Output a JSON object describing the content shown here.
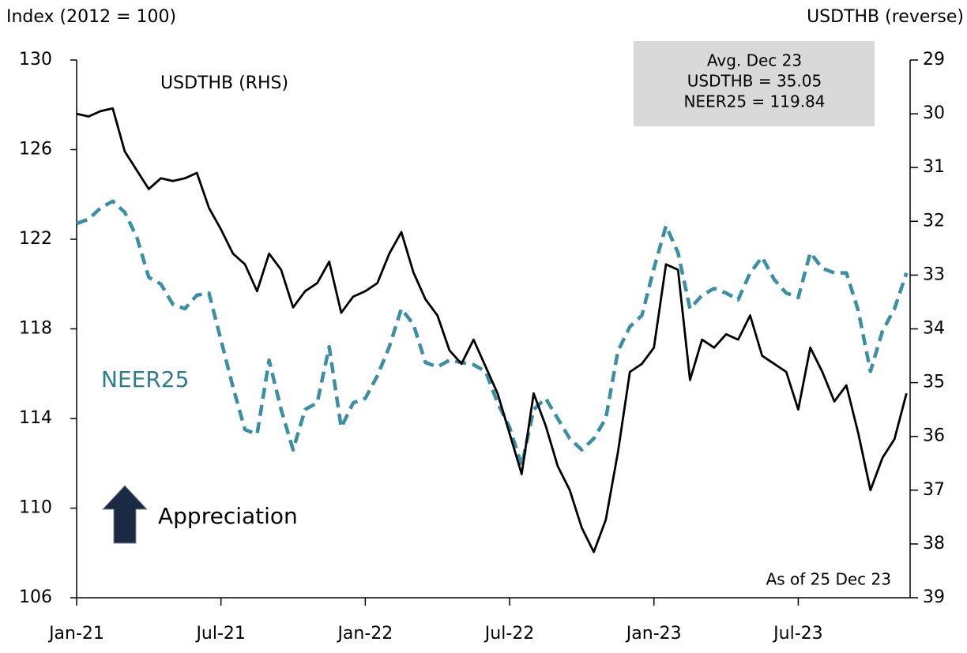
{
  "chart_data": {
    "type": "line",
    "left_axis_title": "Index (2012 = 100)",
    "right_axis_title": "USDTHB (reverse)",
    "x": [
      0,
      0.5,
      1,
      1.5,
      2,
      2.5,
      3,
      3.5,
      4,
      4.5,
      5,
      5.5,
      6,
      6.5,
      7,
      7.5,
      8,
      8.5,
      9,
      9.5,
      10,
      10.5,
      11,
      11.5,
      12,
      12.5,
      13,
      13.5,
      14,
      14.5,
      15,
      15.5,
      16,
      16.5,
      17,
      17.5,
      18,
      18.5,
      19,
      19.5,
      20,
      20.5,
      21,
      21.5,
      22,
      22.5,
      23,
      23.5,
      24,
      24.5,
      25,
      25.5,
      26,
      26.5,
      27,
      27.5,
      28,
      28.5,
      29,
      29.5,
      30,
      30.5,
      31,
      31.5,
      32,
      32.5,
      33,
      33.5,
      34,
      34.5
    ],
    "xlim": [
      0,
      34.65
    ],
    "xticks": [
      {
        "value": 0,
        "label": "Jan-21"
      },
      {
        "value": 6,
        "label": "Jul-21"
      },
      {
        "value": 12,
        "label": "Jan-22"
      },
      {
        "value": 18,
        "label": "Jul-22"
      },
      {
        "value": 24,
        "label": "Jan-23"
      },
      {
        "value": 30,
        "label": "Jul-23"
      }
    ],
    "ylim": [
      106,
      130
    ],
    "yticks": [
      106,
      110,
      114,
      118,
      122,
      126,
      130
    ],
    "y2lim": [
      29,
      39
    ],
    "y2_reversed": true,
    "y2ticks": [
      29,
      30,
      31,
      32,
      33,
      34,
      35,
      36,
      37,
      38,
      39
    ],
    "series": [
      {
        "name": "NEER25",
        "color": "#3a8fa3",
        "dashed": true,
        "values": [
          122.7,
          122.9,
          123.4,
          123.7,
          123.2,
          122.1,
          120.3,
          120.0,
          119.1,
          118.9,
          119.5,
          119.6,
          117.5,
          115.4,
          113.5,
          113.3,
          116.6,
          114.4,
          112.6,
          114.4,
          114.7,
          117.2,
          113.6,
          114.7,
          114.9,
          115.9,
          117.2,
          118.9,
          118.2,
          116.5,
          116.3,
          116.6,
          116.5,
          116.4,
          116.1,
          114.7,
          113.6,
          111.9,
          114.4,
          114.9,
          114.0,
          113.1,
          112.6,
          113.1,
          114.0,
          117.0,
          118.1,
          118.6,
          120.7,
          122.6,
          121.4,
          118.9,
          119.5,
          119.8,
          119.6,
          119.3,
          120.5,
          121.2,
          120.2,
          119.6,
          119.4,
          121.4,
          120.7,
          120.5,
          120.5,
          118.8,
          116.1,
          117.9,
          118.9,
          120.5
        ]
      },
      {
        "name": "USDTHB (RHS)",
        "color": "#000000",
        "dashed": false,
        "axis": "y2",
        "values": [
          30.0,
          30.05,
          29.95,
          29.9,
          30.7,
          31.05,
          31.4,
          31.2,
          31.25,
          31.2,
          31.1,
          31.75,
          32.15,
          32.6,
          32.8,
          33.3,
          32.6,
          32.9,
          33.6,
          33.3,
          33.15,
          32.75,
          33.7,
          33.4,
          33.3,
          33.15,
          32.6,
          32.2,
          32.95,
          33.45,
          33.75,
          34.4,
          34.65,
          34.2,
          34.7,
          35.2,
          35.95,
          36.7,
          35.2,
          35.8,
          36.55,
          37.0,
          37.7,
          38.15,
          37.55,
          36.3,
          34.8,
          34.65,
          34.35,
          32.8,
          32.9,
          34.95,
          34.2,
          34.35,
          34.1,
          34.2,
          33.75,
          34.5,
          34.65,
          34.8,
          35.5,
          34.35,
          34.8,
          35.35,
          35.05,
          35.95,
          37.0,
          36.4,
          36.05,
          35.2
        ]
      }
    ],
    "box_lines": [
      "Avg. Dec 23",
      "USDTHB = 35.05",
      "NEER25 = 119.84"
    ],
    "arrow_label": "Appreciation",
    "note": "As of 25 Dec 23"
  }
}
